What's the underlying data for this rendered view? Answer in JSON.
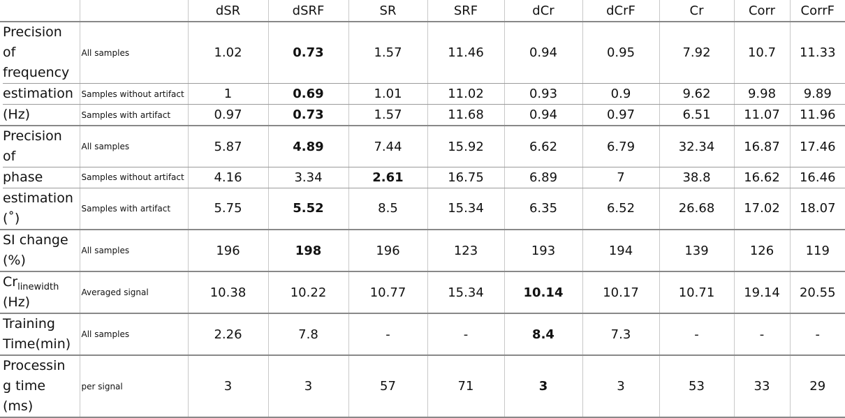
{
  "columns": [
    "dSR",
    "dSRF",
    "SR",
    "SRF",
    "dCr",
    "dCrF",
    "Cr",
    "Corr",
    "CorrF"
  ],
  "freq": {
    "cat_lines": [
      "Precision",
      "of",
      "frequency",
      "estimation",
      "(Hz)"
    ],
    "rows": [
      {
        "sub": "All samples",
        "values": [
          "1.02",
          "0.73",
          "1.57",
          "11.46",
          "0.94",
          "0.95",
          "7.92",
          "10.7",
          "11.33"
        ]
      },
      {
        "sub": "Samples without artifact",
        "values": [
          "1",
          "0.69",
          "1.01",
          "11.02",
          "0.93",
          "0.9",
          "9.62",
          "9.98",
          "9.89"
        ]
      },
      {
        "sub": "Samples with artifact",
        "values": [
          "0.97",
          "0.73",
          "1.57",
          "11.68",
          "0.94",
          "0.97",
          "6.51",
          "11.07",
          "11.96"
        ]
      }
    ]
  },
  "phase": {
    "cat_lines": [
      "Precision",
      "of",
      "phase",
      "estimation",
      "(˚)"
    ],
    "rows": [
      {
        "sub": "All samples",
        "values": [
          "5.87",
          "4.89",
          "7.44",
          "15.92",
          "6.62",
          "6.79",
          "32.34",
          "16.87",
          "17.46"
        ]
      },
      {
        "sub": "Samples without artifact",
        "values": [
          "4.16",
          "3.34",
          "2.61",
          "16.75",
          "6.89",
          "7",
          "38.8",
          "16.62",
          "16.46"
        ]
      },
      {
        "sub": "Samples with artifact",
        "values": [
          "5.75",
          "5.52",
          "8.5",
          "15.34",
          "6.35",
          "6.52",
          "26.68",
          "17.02",
          "18.07"
        ]
      }
    ]
  },
  "si": {
    "cat_lines": [
      "SI change",
      "(%)"
    ],
    "sub": "All samples",
    "values": [
      "196",
      "198",
      "196",
      "123",
      "193",
      "194",
      "139",
      "126",
      "119"
    ]
  },
  "cr": {
    "cat_main": "Cr",
    "cat_sub": "linewidth",
    "cat_unit": "(Hz)",
    "sub": "Averaged signal",
    "values": [
      "10.38",
      "10.22",
      "10.77",
      "15.34",
      "10.14",
      "10.17",
      "10.71",
      "19.14",
      "20.55"
    ]
  },
  "training": {
    "cat_lines": [
      "Training",
      "Time(min)"
    ],
    "sub": "All samples",
    "values": [
      "2.26",
      "7.8",
      "-",
      "-",
      "8.4",
      "7.3",
      "-",
      "-",
      "-"
    ]
  },
  "processing": {
    "cat_lines": [
      "Processin",
      "g time",
      "(ms)"
    ],
    "sub": "per signal",
    "values": [
      "3",
      "3",
      "57",
      "71",
      "3",
      "3",
      "53",
      "33",
      "29"
    ]
  }
}
